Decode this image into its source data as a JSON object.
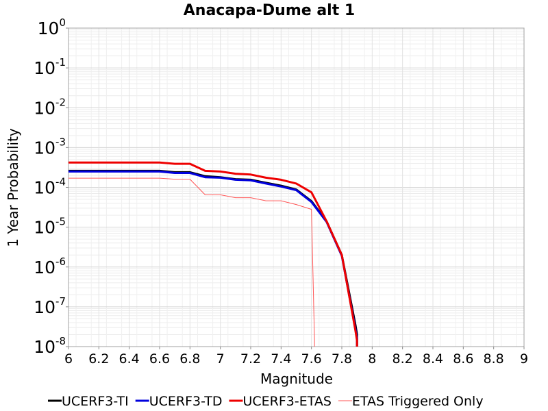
{
  "chart_data": {
    "type": "line",
    "title": "Anacapa-Dume alt 1",
    "xlabel": "Magnitude",
    "ylabel": "1 Year Probability",
    "xlim": [
      6,
      9
    ],
    "ylim": [
      1e-08,
      1
    ],
    "yscale": "log",
    "grid": true,
    "legend_position": "bottom",
    "x_ticks": [
      "6",
      "6.2",
      "6.4",
      "6.6",
      "6.8",
      "7",
      "7.2",
      "7.4",
      "7.6",
      "7.8",
      "8",
      "8.2",
      "8.4",
      "8.6",
      "8.8",
      "9"
    ],
    "y_ticks": [
      {
        "base": "10",
        "exp": "0"
      },
      {
        "base": "10",
        "exp": "-1"
      },
      {
        "base": "10",
        "exp": "-2"
      },
      {
        "base": "10",
        "exp": "-3"
      },
      {
        "base": "10",
        "exp": "-4"
      },
      {
        "base": "10",
        "exp": "-5"
      },
      {
        "base": "10",
        "exp": "-6"
      },
      {
        "base": "10",
        "exp": "-7"
      },
      {
        "base": "10",
        "exp": "-8"
      }
    ],
    "series": [
      {
        "name": "UCERF3-TI",
        "color": "#000000",
        "width": 3,
        "x": [
          6.0,
          6.1,
          6.2,
          6.3,
          6.4,
          6.5,
          6.6,
          6.7,
          6.8,
          6.9,
          7.0,
          7.1,
          7.2,
          7.3,
          7.4,
          7.5,
          7.6,
          7.7,
          7.8,
          7.89,
          7.9,
          7.9
        ],
        "y": [
          0.00026,
          0.00026,
          0.00026,
          0.00026,
          0.00026,
          0.00026,
          0.00026,
          0.00024,
          0.00024,
          0.00019,
          0.00018,
          0.00016,
          0.000155,
          0.00013,
          0.00011,
          8.8e-05,
          4.5e-05,
          1.4e-05,
          2e-06,
          3.5e-08,
          2e-08,
          1e-08
        ]
      },
      {
        "name": "UCERF3-TD",
        "color": "#0000dd",
        "width": 3,
        "x": [
          6.0,
          6.1,
          6.2,
          6.3,
          6.4,
          6.5,
          6.6,
          6.7,
          6.8,
          6.9,
          7.0,
          7.1,
          7.2,
          7.3,
          7.4,
          7.5,
          7.6,
          7.7,
          7.8,
          7.89,
          7.9,
          7.9
        ],
        "y": [
          0.00025,
          0.00025,
          0.00025,
          0.00025,
          0.00025,
          0.00025,
          0.00025,
          0.00023,
          0.00023,
          0.00018,
          0.000175,
          0.000155,
          0.00015,
          0.000125,
          0.000105,
          8.5e-05,
          4.3e-05,
          1.35e-05,
          1.9e-06,
          2.8e-08,
          1.6e-08,
          1e-08
        ]
      },
      {
        "name": "UCERF3-ETAS",
        "color": "#ee0000",
        "width": 3,
        "x": [
          6.0,
          6.1,
          6.2,
          6.3,
          6.4,
          6.5,
          6.6,
          6.7,
          6.8,
          6.9,
          7.0,
          7.1,
          7.2,
          7.3,
          7.4,
          7.5,
          7.6,
          7.7,
          7.8,
          7.89,
          7.9,
          7.9
        ],
        "y": [
          0.00042,
          0.00042,
          0.00042,
          0.00042,
          0.00042,
          0.00042,
          0.00042,
          0.00039,
          0.00039,
          0.00026,
          0.00025,
          0.00022,
          0.00021,
          0.000175,
          0.000155,
          0.000125,
          7.5e-05,
          1.4e-05,
          2e-06,
          2.5e-08,
          1.4e-08,
          1e-08
        ]
      },
      {
        "name": "ETAS Triggered Only",
        "color": "#ff5555",
        "width": 1,
        "x": [
          6.0,
          6.1,
          6.2,
          6.3,
          6.4,
          6.5,
          6.6,
          6.7,
          6.8,
          6.9,
          7.0,
          7.1,
          7.2,
          7.3,
          7.4,
          7.5,
          7.6,
          7.62,
          7.62
        ],
        "y": [
          0.00017,
          0.00017,
          0.00017,
          0.00017,
          0.00017,
          0.00017,
          0.00017,
          0.00016,
          0.00016,
          6.5e-05,
          6.5e-05,
          5.5e-05,
          5.5e-05,
          4.6e-05,
          4.6e-05,
          3.7e-05,
          2.8e-05,
          1.5e-08,
          1e-08
        ]
      }
    ]
  }
}
